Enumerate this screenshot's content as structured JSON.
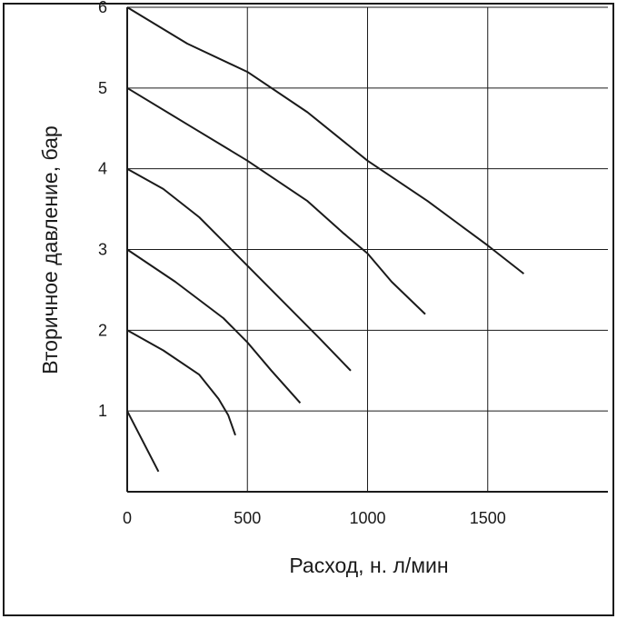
{
  "chart_data": {
    "type": "line",
    "title": "",
    "xlabel": "Расход, н. л/мин",
    "ylabel": "Вторичное давление, бар",
    "xlim": [
      0,
      2000
    ],
    "ylim": [
      0,
      6
    ],
    "x_ticks": [
      0,
      500,
      1000,
      1500
    ],
    "x_tick_labels": [
      "0",
      "500",
      "1000",
      "1500"
    ],
    "y_ticks": [
      1,
      2,
      3,
      4,
      5,
      6
    ],
    "y_tick_labels": [
      "1",
      "2",
      "3",
      "4",
      "5",
      "6"
    ],
    "grid": true,
    "legend": "none",
    "line_color": "#1a1a1a",
    "series": [
      {
        "points": [
          [
            0,
            1.0
          ],
          [
            130,
            0.25
          ]
        ]
      },
      {
        "points": [
          [
            0,
            2.0
          ],
          [
            150,
            1.75
          ],
          [
            300,
            1.45
          ],
          [
            380,
            1.15
          ],
          [
            420,
            0.95
          ],
          [
            450,
            0.7
          ]
        ]
      },
      {
        "points": [
          [
            0,
            3.0
          ],
          [
            200,
            2.6
          ],
          [
            400,
            2.15
          ],
          [
            500,
            1.85
          ],
          [
            600,
            1.5
          ],
          [
            720,
            1.1
          ]
        ]
      },
      {
        "points": [
          [
            0,
            4.0
          ],
          [
            150,
            3.75
          ],
          [
            300,
            3.4
          ],
          [
            450,
            2.95
          ],
          [
            600,
            2.5
          ],
          [
            800,
            1.9
          ],
          [
            930,
            1.5
          ]
        ]
      },
      {
        "points": [
          [
            0,
            5.0
          ],
          [
            250,
            4.55
          ],
          [
            500,
            4.1
          ],
          [
            750,
            3.6
          ],
          [
            900,
            3.2
          ],
          [
            1000,
            2.95
          ],
          [
            1100,
            2.6
          ],
          [
            1240,
            2.2
          ]
        ]
      },
      {
        "points": [
          [
            0,
            6.0
          ],
          [
            250,
            5.55
          ],
          [
            500,
            5.2
          ],
          [
            750,
            4.7
          ],
          [
            1000,
            4.1
          ],
          [
            1250,
            3.6
          ],
          [
            1500,
            3.05
          ],
          [
            1650,
            2.7
          ]
        ]
      }
    ]
  }
}
